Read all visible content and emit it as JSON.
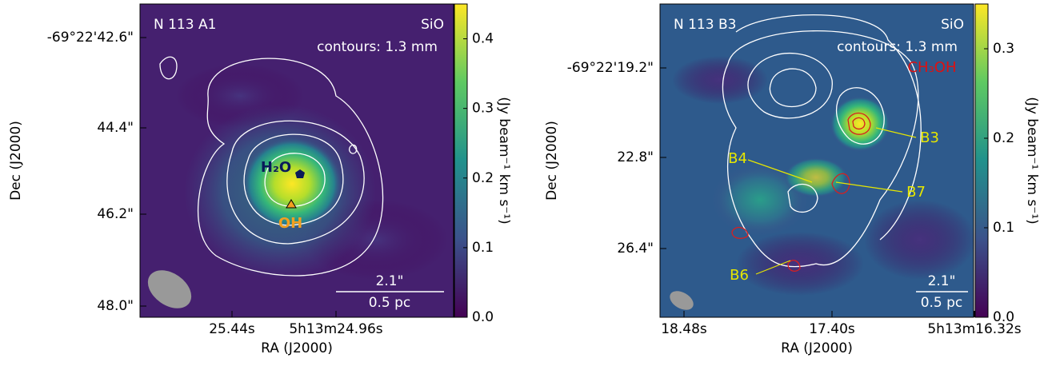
{
  "panels": [
    {
      "title": "N 113 A1",
      "species": "SiO",
      "contours": "contours: 1.3 mm",
      "annotations": [
        "H₂O",
        "OH"
      ],
      "scale_arcsec": "2.1\"",
      "scale_pc": "0.5 pc",
      "xlabel": "RA (J2000)",
      "ylabel": "Dec (J2000)",
      "xticks": [
        "25.44s",
        "5h13m24.96s"
      ],
      "yticks": [
        "-69°22'42.6\"",
        "44.4\"",
        "46.2\"",
        "48.0\""
      ],
      "colorbar_label": "(Jy beam⁻¹ km s⁻¹)",
      "colorbar_lim": [
        0,
        0.45
      ],
      "colorbar_ticks": [
        {
          "value": 0,
          "label": "0.0"
        },
        0.1,
        0.2,
        0.3,
        0.4
      ]
    },
    {
      "title": "N 113 B3",
      "species": "SiO",
      "contours": "contours: 1.3 mm",
      "annotations": [
        "CH₃OH",
        "B3",
        "B4",
        "B7",
        "B6"
      ],
      "scale_arcsec": "2.1\"",
      "scale_pc": "0.5 pc",
      "xlabel": "RA (J2000)",
      "ylabel": "Dec (J2000)",
      "xticks": [
        "18.48s",
        "17.40s",
        "5h13m16.32s"
      ],
      "yticks": [
        "-69°22'19.2\"",
        "22.8\"",
        "26.4\""
      ],
      "colorbar_label": "(Jy beam⁻¹ km s⁻¹)",
      "colorbar_lim": [
        0,
        0.35
      ],
      "colorbar_ticks": [
        {
          "value": 0,
          "label": "0.0"
        },
        0.1,
        0.2,
        0.3
      ]
    }
  ]
}
